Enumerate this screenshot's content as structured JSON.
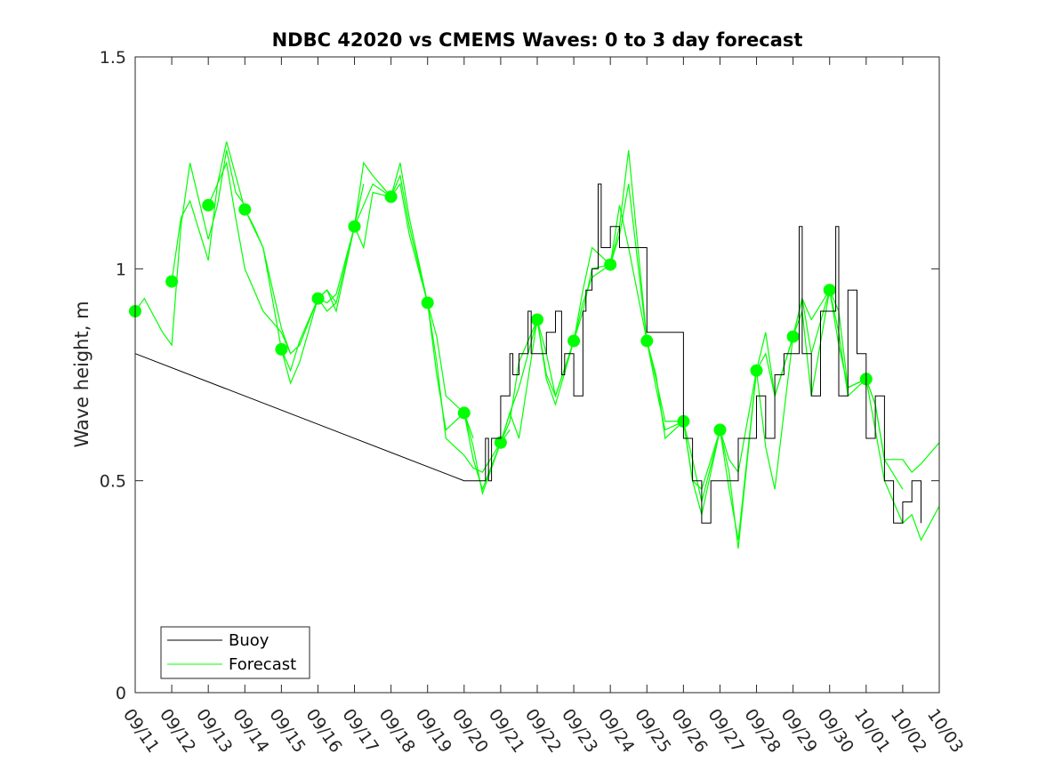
{
  "chart_data": {
    "type": "line",
    "title": "NDBC 42020 vs CMEMS Waves: 0 to 3 day forecast",
    "xlabel": "",
    "ylabel": "Wave height, m",
    "ylim": [
      0,
      1.5
    ],
    "xlim": [
      "09/11",
      "10/03"
    ],
    "x_tick_labels": [
      "09/11",
      "09/12",
      "09/13",
      "09/14",
      "09/15",
      "09/16",
      "09/17",
      "09/18",
      "09/19",
      "09/20",
      "09/21",
      "09/22",
      "09/23",
      "09/24",
      "09/25",
      "09/26",
      "09/27",
      "09/28",
      "09/29",
      "09/30",
      "10/01",
      "10/02",
      "10/03"
    ],
    "y_ticks": [
      0,
      0.5,
      1,
      1.5
    ],
    "y_tick_labels": [
      "0",
      "0.5",
      "1",
      "1.5"
    ],
    "grid": false,
    "legend_position": "bottom-left",
    "legend": [
      {
        "label": "Buoy",
        "color": "#000000"
      },
      {
        "label": "Forecast",
        "color": "#00ff00"
      }
    ],
    "colors": {
      "buoy": "#000000",
      "forecast": "#00ff00"
    },
    "buoy": {
      "name": "Buoy",
      "x": [
        "09/11",
        "09/20",
        "09/20 12:00",
        "09/20 14:00",
        "09/20 16:00",
        "09/20 18:00",
        "09/21",
        "09/21 06:00",
        "09/21 08:00",
        "09/21 12:00",
        "09/21 18:00",
        "09/21 20:00",
        "09/22",
        "09/22 06:00",
        "09/22 12:00",
        "09/22 16:00",
        "09/22 18:00",
        "09/23",
        "09/23 06:00",
        "09/23 08:00",
        "09/23 12:00",
        "09/23 16:00",
        "09/23 18:00",
        "09/24",
        "09/24 06:00",
        "09/25",
        "09/26",
        "09/26 06:00",
        "09/26 12:00",
        "09/26 18:00",
        "09/27",
        "09/27 12:00",
        "09/28",
        "09/28 06:00",
        "09/28 12:00",
        "09/28 18:00",
        "09/29",
        "09/29 04:00",
        "09/29 06:00",
        "09/29 12:00",
        "09/29 18:00",
        "09/30",
        "09/30 04:00",
        "09/30 06:00",
        "09/30 12:00",
        "09/30 18:00",
        "10/01",
        "10/01 06:00",
        "10/01 12:00",
        "10/01 18:00",
        "10/02",
        "10/02 06:00",
        "10/02 12:00"
      ],
      "y": [
        0.8,
        0.5,
        0.5,
        0.6,
        0.5,
        0.6,
        0.7,
        0.8,
        0.75,
        0.8,
        0.9,
        0.8,
        0.8,
        0.85,
        0.9,
        0.75,
        0.8,
        0.7,
        0.9,
        0.95,
        1.0,
        1.2,
        1.05,
        1.1,
        1.05,
        0.85,
        0.6,
        0.5,
        0.4,
        0.5,
        0.5,
        0.6,
        0.7,
        0.6,
        0.75,
        0.8,
        0.8,
        1.1,
        0.8,
        0.7,
        0.9,
        0.9,
        1.1,
        0.7,
        0.95,
        0.8,
        0.6,
        0.7,
        0.5,
        0.4,
        0.45,
        0.5,
        0.4
      ]
    },
    "forecast_markers": {
      "name": "Forecast",
      "x": [
        "09/11",
        "09/12",
        "09/13",
        "09/14",
        "09/15",
        "09/16",
        "09/17",
        "09/18",
        "09/19",
        "09/20",
        "09/21",
        "09/22",
        "09/23",
        "09/24",
        "09/25",
        "09/26",
        "09/27",
        "09/28",
        "09/29",
        "09/30",
        "10/01"
      ],
      "y": [
        0.9,
        0.97,
        1.15,
        1.14,
        0.81,
        0.93,
        1.1,
        1.17,
        0.92,
        0.66,
        0.59,
        0.88,
        0.83,
        1.01,
        0.83,
        0.64,
        0.62,
        0.76,
        0.84,
        0.95,
        0.74
      ]
    },
    "forecast_runs": [
      {
        "x": [
          "09/11",
          "09/11 06:00",
          "09/11 18:00",
          "09/12",
          "09/12 06:00",
          "09/12 12:00",
          "09/13",
          "09/13 06:00",
          "09/13 12:00",
          "09/13 18:00",
          "09/14"
        ],
        "y": [
          0.9,
          0.93,
          0.85,
          0.82,
          1.1,
          1.25,
          1.07,
          1.15,
          1.28,
          1.18,
          1.15
        ]
      },
      {
        "x": [
          "09/12",
          "09/12 06:00",
          "09/12 12:00",
          "09/13",
          "09/13 06:00",
          "09/13 12:00",
          "09/13 18:00",
          "09/14",
          "09/14 12:00",
          "09/15",
          "09/15 06:00"
        ],
        "y": [
          0.97,
          1.12,
          1.16,
          1.02,
          1.2,
          1.25,
          1.12,
          1.0,
          0.9,
          0.85,
          0.8
        ]
      },
      {
        "x": [
          "09/13",
          "09/13 06:00",
          "09/13 12:00",
          "09/14",
          "09/14 12:00",
          "09/15",
          "09/15 06:00",
          "09/15 12:00",
          "09/16",
          "09/16 06:00",
          "09/16 12:00"
        ],
        "y": [
          1.15,
          1.2,
          1.3,
          1.14,
          1.05,
          0.86,
          0.8,
          0.82,
          0.93,
          0.9,
          0.92
        ]
      },
      {
        "x": [
          "09/14",
          "09/14 06:00",
          "09/14 12:00",
          "09/15",
          "09/15 06:00",
          "09/15 12:00",
          "09/16",
          "09/16 06:00",
          "09/16 12:00",
          "09/17",
          "09/17 06:00"
        ],
        "y": [
          1.14,
          1.1,
          1.05,
          0.81,
          0.76,
          0.83,
          0.93,
          0.95,
          0.92,
          1.1,
          1.2
        ]
      },
      {
        "x": [
          "09/15",
          "09/15 06:00",
          "09/15 12:00",
          "09/16",
          "09/16 06:00",
          "09/16 12:00",
          "09/17",
          "09/17 06:00",
          "09/17 12:00",
          "09/18"
        ],
        "y": [
          0.81,
          0.73,
          0.78,
          0.93,
          0.92,
          0.94,
          1.1,
          1.25,
          1.22,
          1.17
        ]
      },
      {
        "x": [
          "09/16",
          "09/16 06:00",
          "09/16 12:00",
          "09/17",
          "09/17 06:00",
          "09/17 12:00",
          "09/18",
          "09/18 06:00",
          "09/18 12:00",
          "09/19"
        ],
        "y": [
          0.93,
          0.95,
          0.9,
          1.1,
          1.15,
          1.2,
          1.17,
          1.25,
          1.12,
          0.92
        ]
      },
      {
        "x": [
          "09/17",
          "09/17 06:00",
          "09/17 12:00",
          "09/18",
          "09/18 06:00",
          "09/18 12:00",
          "09/19",
          "09/19 06:00",
          "09/19 12:00",
          "09/20",
          "09/20 06:00"
        ],
        "y": [
          1.1,
          1.05,
          1.18,
          1.17,
          1.2,
          1.08,
          0.92,
          0.75,
          0.62,
          0.66,
          0.6
        ]
      },
      {
        "x": [
          "09/18",
          "09/18 06:00",
          "09/18 12:00",
          "09/19",
          "09/19 06:00",
          "09/19 12:00",
          "09/20",
          "09/20 06:00",
          "09/20 12:00",
          "09/21",
          "09/21 06:00"
        ],
        "y": [
          1.17,
          1.22,
          1.1,
          0.92,
          0.78,
          0.6,
          0.56,
          0.53,
          0.52,
          0.59,
          0.62
        ]
      },
      {
        "x": [
          "09/19",
          "09/19 06:00",
          "09/19 12:00",
          "09/20",
          "09/20 06:00",
          "09/20 12:00",
          "09/21",
          "09/21 06:00",
          "09/21 12:00",
          "09/22"
        ],
        "y": [
          0.92,
          0.84,
          0.7,
          0.66,
          0.58,
          0.47,
          0.59,
          0.66,
          0.72,
          0.88
        ]
      },
      {
        "x": [
          "09/20",
          "09/20 06:00",
          "09/20 12:00",
          "09/21",
          "09/21 06:00",
          "09/21 12:00",
          "09/22",
          "09/22 06:00",
          "09/22 12:00",
          "09/23"
        ],
        "y": [
          0.66,
          0.55,
          0.48,
          0.59,
          0.64,
          0.78,
          0.88,
          0.74,
          0.68,
          0.83
        ]
      },
      {
        "x": [
          "09/21",
          "09/21 06:00",
          "09/21 12:00",
          "09/22",
          "09/22 06:00",
          "09/22 12:00",
          "09/23",
          "09/23 06:00",
          "09/23 12:00",
          "09/24"
        ],
        "y": [
          0.59,
          0.66,
          0.6,
          0.88,
          0.8,
          0.7,
          0.83,
          0.9,
          1.0,
          1.01
        ]
      },
      {
        "x": [
          "09/22",
          "09/22 06:00",
          "09/22 12:00",
          "09/23",
          "09/23 06:00",
          "09/23 12:00",
          "09/24",
          "09/24 06:00",
          "09/24 12:00",
          "09/25"
        ],
        "y": [
          0.88,
          0.75,
          0.7,
          0.83,
          0.95,
          1.05,
          1.01,
          1.1,
          1.28,
          0.83
        ]
      },
      {
        "x": [
          "09/23",
          "09/23 06:00",
          "09/23 12:00",
          "09/24",
          "09/24 06:00",
          "09/24 12:00",
          "09/25",
          "09/25 06:00",
          "09/25 12:00",
          "09/26"
        ],
        "y": [
          0.83,
          0.92,
          0.98,
          1.01,
          1.08,
          1.2,
          0.83,
          0.74,
          0.64,
          0.64
        ]
      },
      {
        "x": [
          "09/24",
          "09/24 06:00",
          "09/24 12:00",
          "09/25",
          "09/25 06:00",
          "09/25 12:00",
          "09/26",
          "09/26 06:00",
          "09/26 12:00",
          "09/27"
        ],
        "y": [
          1.01,
          1.15,
          1.05,
          0.83,
          0.72,
          0.62,
          0.64,
          0.5,
          0.48,
          0.62
        ]
      },
      {
        "x": [
          "09/25",
          "09/25 06:00",
          "09/25 12:00",
          "09/26",
          "09/26 06:00",
          "09/26 12:00",
          "09/27",
          "09/27 06:00",
          "09/27 12:00",
          "09/28"
        ],
        "y": [
          0.83,
          0.75,
          0.6,
          0.64,
          0.5,
          0.42,
          0.62,
          0.55,
          0.52,
          0.76
        ]
      },
      {
        "x": [
          "09/26",
          "09/26 06:00",
          "09/26 12:00",
          "09/27",
          "09/27 06:00",
          "09/27 12:00",
          "09/28",
          "09/28 06:00",
          "09/28 12:00",
          "09/29"
        ],
        "y": [
          0.64,
          0.55,
          0.45,
          0.62,
          0.48,
          0.36,
          0.76,
          0.8,
          0.7,
          0.84
        ]
      },
      {
        "x": [
          "09/27",
          "09/27 06:00",
          "09/27 12:00",
          "09/28",
          "09/28 06:00",
          "09/28 12:00",
          "09/29",
          "09/29 06:00",
          "09/29 12:00",
          "09/30"
        ],
        "y": [
          0.62,
          0.52,
          0.34,
          0.76,
          0.58,
          0.48,
          0.84,
          0.93,
          0.88,
          0.95
        ]
      },
      {
        "x": [
          "09/28",
          "09/28 06:00",
          "09/28 12:00",
          "09/29",
          "09/29 06:00",
          "09/29 12:00",
          "09/30",
          "09/30 06:00",
          "09/30 12:00",
          "10/01"
        ],
        "y": [
          0.76,
          0.85,
          0.7,
          0.84,
          0.93,
          0.8,
          0.95,
          0.82,
          0.72,
          0.74
        ]
      },
      {
        "x": [
          "09/29",
          "09/29 06:00",
          "09/29 12:00",
          "09/30",
          "09/30 06:00",
          "09/30 12:00",
          "10/01",
          "10/01 06:00",
          "10/01 12:00",
          "10/02"
        ],
        "y": [
          0.84,
          0.9,
          0.7,
          0.95,
          0.85,
          0.7,
          0.74,
          0.68,
          0.55,
          0.48
        ]
      },
      {
        "x": [
          "09/30",
          "09/30 06:00",
          "09/30 12:00",
          "10/01",
          "10/01 06:00",
          "10/01 12:00",
          "10/02",
          "10/02 06:00",
          "10/02 12:00",
          "10/03"
        ],
        "y": [
          0.95,
          0.9,
          0.72,
          0.74,
          0.62,
          0.5,
          0.4,
          0.42,
          0.36,
          0.44
        ]
      },
      {
        "x": [
          "10/01",
          "10/01 06:00",
          "10/01 12:00",
          "10/02",
          "10/02 06:00",
          "10/02 12:00",
          "10/03"
        ],
        "y": [
          0.74,
          0.68,
          0.55,
          0.55,
          0.52,
          0.54,
          0.59
        ]
      }
    ]
  }
}
